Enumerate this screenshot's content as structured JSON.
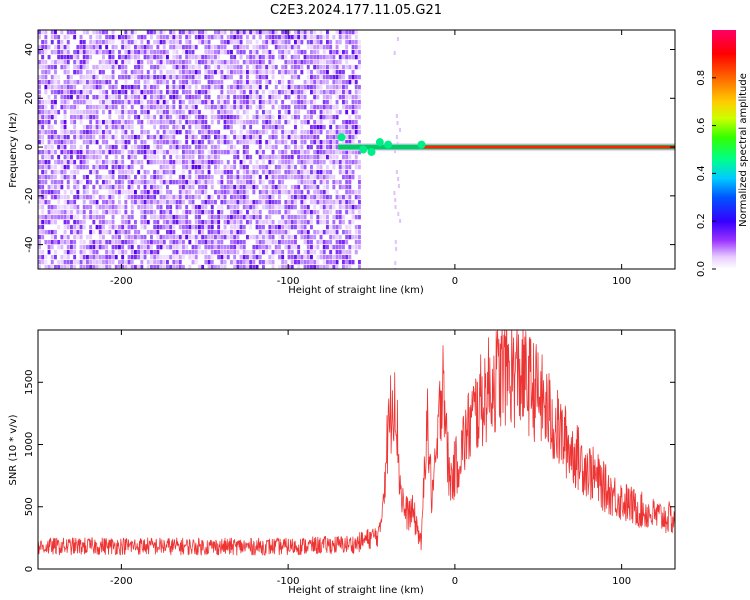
{
  "title": "C2E3.2024.177.11.05.G21",
  "colors": {
    "spectro_low": "#d9b3ff",
    "spectro_mid": "#7a1fff",
    "snr_line": "#ee2222"
  },
  "chart_data": [
    {
      "type": "heatmap",
      "xlabel": "Height of straight line (km)",
      "ylabel": "Frequency (Hz)",
      "xlim": [
        -250,
        132
      ],
      "ylim": [
        -50,
        48
      ],
      "xticks": [
        -200,
        -100,
        0,
        100
      ],
      "xtick_labels": [
        "-200",
        "-100",
        "0",
        "100"
      ],
      "yticks": [
        -40,
        -20,
        0,
        20,
        40
      ],
      "ytick_labels": [
        "-40",
        "-20",
        "0",
        "20",
        "40"
      ],
      "noise_region_x": [
        -250,
        -58
      ],
      "signal_line_freq": 0,
      "signal_x_range": [
        -70,
        132
      ],
      "colorbar": {
        "label": "Normalized spectral amplitude",
        "range": [
          0,
          1
        ],
        "ticks": [
          0.0,
          0.2,
          0.4,
          0.6,
          0.8
        ],
        "tick_labels": [
          "0.0",
          "0.2",
          "0.4",
          "0.6",
          "0.8"
        ]
      }
    },
    {
      "type": "line",
      "xlabel": "Height of straight line (km)",
      "ylabel": "SNR (10 * v/v)",
      "xlim": [
        -250,
        132
      ],
      "ylim": [
        0,
        1920
      ],
      "xticks": [
        -200,
        -100,
        0,
        100
      ],
      "xtick_labels": [
        "-200",
        "-100",
        "0",
        "100"
      ],
      "yticks": [
        0,
        500,
        1000,
        1500
      ],
      "ytick_labels": [
        "0",
        "500",
        "1000",
        "1500"
      ],
      "grid": false,
      "series": [
        {
          "x": [
            -250,
            -200,
            -150,
            -100,
            -60,
            -45,
            -40,
            -36,
            -33,
            -30,
            -25,
            -20,
            -17,
            -14,
            -12,
            -10,
            -7,
            -5,
            -3,
            0,
            10,
            20,
            30,
            40,
            50,
            60,
            70,
            80,
            90,
            100,
            110,
            120,
            132
          ],
          "values": [
            180,
            185,
            180,
            180,
            200,
            280,
            1100,
            1500,
            700,
            450,
            450,
            200,
            1250,
            600,
            750,
            1050,
            1700,
            1000,
            700,
            800,
            1200,
            1450,
            1600,
            1550,
            1400,
            1150,
            950,
            800,
            650,
            550,
            480,
            430,
            400
          ]
        }
      ]
    }
  ]
}
